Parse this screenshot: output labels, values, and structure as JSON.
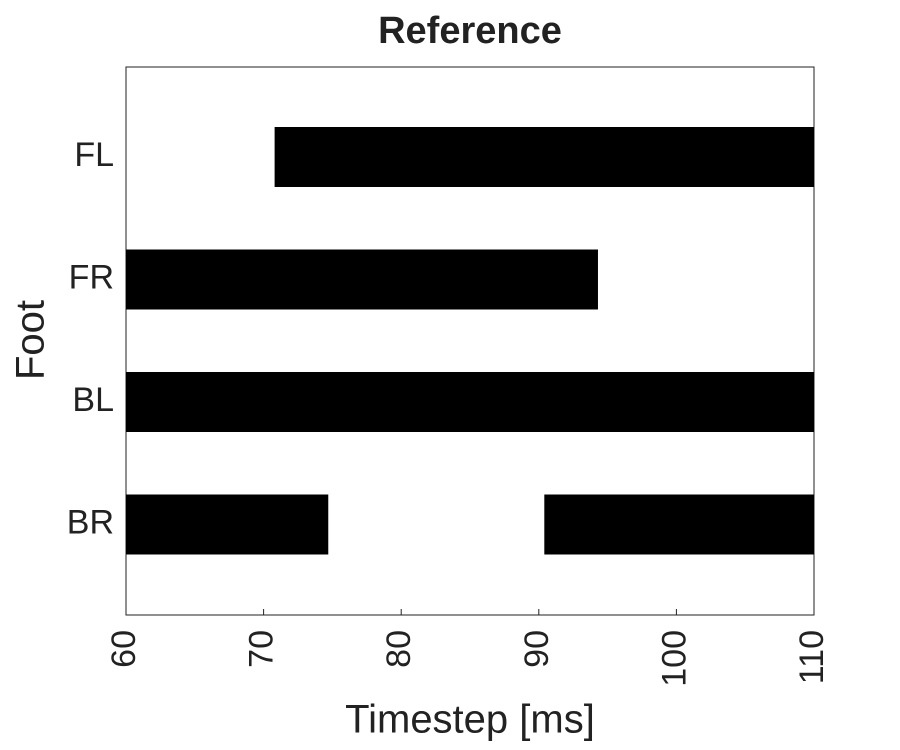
{
  "chart_data": {
    "type": "timeline",
    "title": "Reference",
    "xlabel": "Timestep [ms]",
    "ylabel": "Foot",
    "categories": [
      "FL",
      "FR",
      "BL",
      "BR"
    ],
    "intervals": [
      [
        [
          70.8,
          110
        ]
      ],
      [
        [
          60,
          94.3
        ]
      ],
      [
        [
          60,
          110
        ]
      ],
      [
        [
          60,
          74.7
        ],
        [
          90.4,
          110
        ]
      ]
    ],
    "color": "#000000",
    "xlim": [
      60,
      110
    ],
    "xticks": [
      60,
      70,
      80,
      90,
      100,
      110
    ]
  }
}
